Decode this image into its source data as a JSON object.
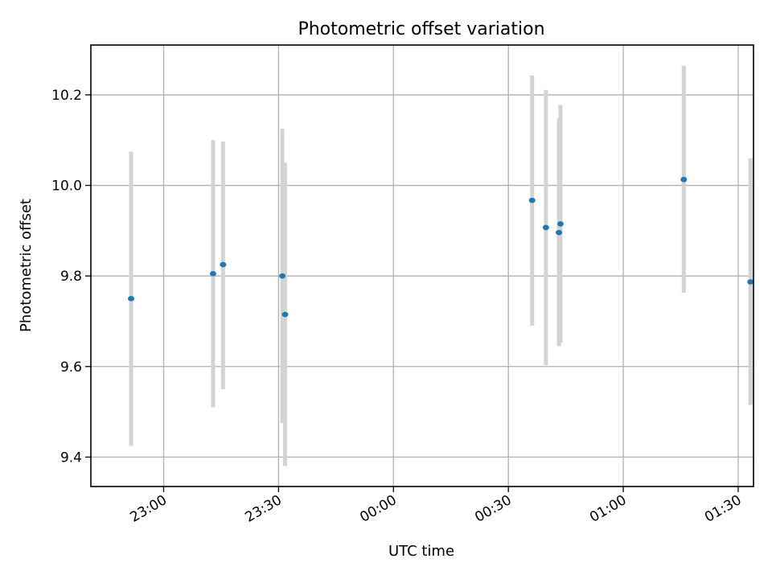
{
  "chart_data": {
    "type": "scatter",
    "title": "Photometric offset variation",
    "xlabel": "UTC time",
    "ylabel": "Photometric offset",
    "x_axis_type": "time",
    "xlim": [
      "22:41",
      "01:34"
    ],
    "ylim": [
      9.335,
      10.31
    ],
    "x_ticks": [
      {
        "value": "23:00",
        "label": "23:00"
      },
      {
        "value": "23:30",
        "label": "23:30"
      },
      {
        "value": "00:00",
        "label": "00:00"
      },
      {
        "value": "00:30",
        "label": "00:30"
      },
      {
        "value": "01:00",
        "label": "01:00"
      },
      {
        "value": "01:30",
        "label": "01:30"
      }
    ],
    "y_ticks": [
      9.4,
      9.6,
      9.8,
      10.0,
      10.2
    ],
    "grid": true,
    "point_color": "#1f77b4",
    "errorbar_color": "#d3d3d3",
    "points": [
      {
        "x": "22:51.5",
        "y": 9.75,
        "lo": 9.425,
        "hi": 10.075
      },
      {
        "x": "23:12.9",
        "y": 9.805,
        "lo": 9.51,
        "hi": 10.1
      },
      {
        "x": "23:15.5",
        "y": 9.825,
        "lo": 9.55,
        "hi": 10.097
      },
      {
        "x": "23:31.0",
        "y": 9.8,
        "lo": 9.475,
        "hi": 10.125
      },
      {
        "x": "23:31.7",
        "y": 9.715,
        "lo": 9.38,
        "hi": 10.05
      },
      {
        "x": "00:36.2",
        "y": 9.967,
        "lo": 9.69,
        "hi": 10.243
      },
      {
        "x": "00:39.8",
        "y": 9.907,
        "lo": 9.603,
        "hi": 10.211
      },
      {
        "x": "00:43.2",
        "y": 9.896,
        "lo": 9.645,
        "hi": 10.148
      },
      {
        "x": "00:43.6",
        "y": 9.915,
        "lo": 9.652,
        "hi": 10.178
      },
      {
        "x": "01:15.8",
        "y": 10.013,
        "lo": 9.763,
        "hi": 10.264
      },
      {
        "x": "01:33.2",
        "y": 9.787,
        "lo": 9.515,
        "hi": 10.06
      }
    ]
  }
}
